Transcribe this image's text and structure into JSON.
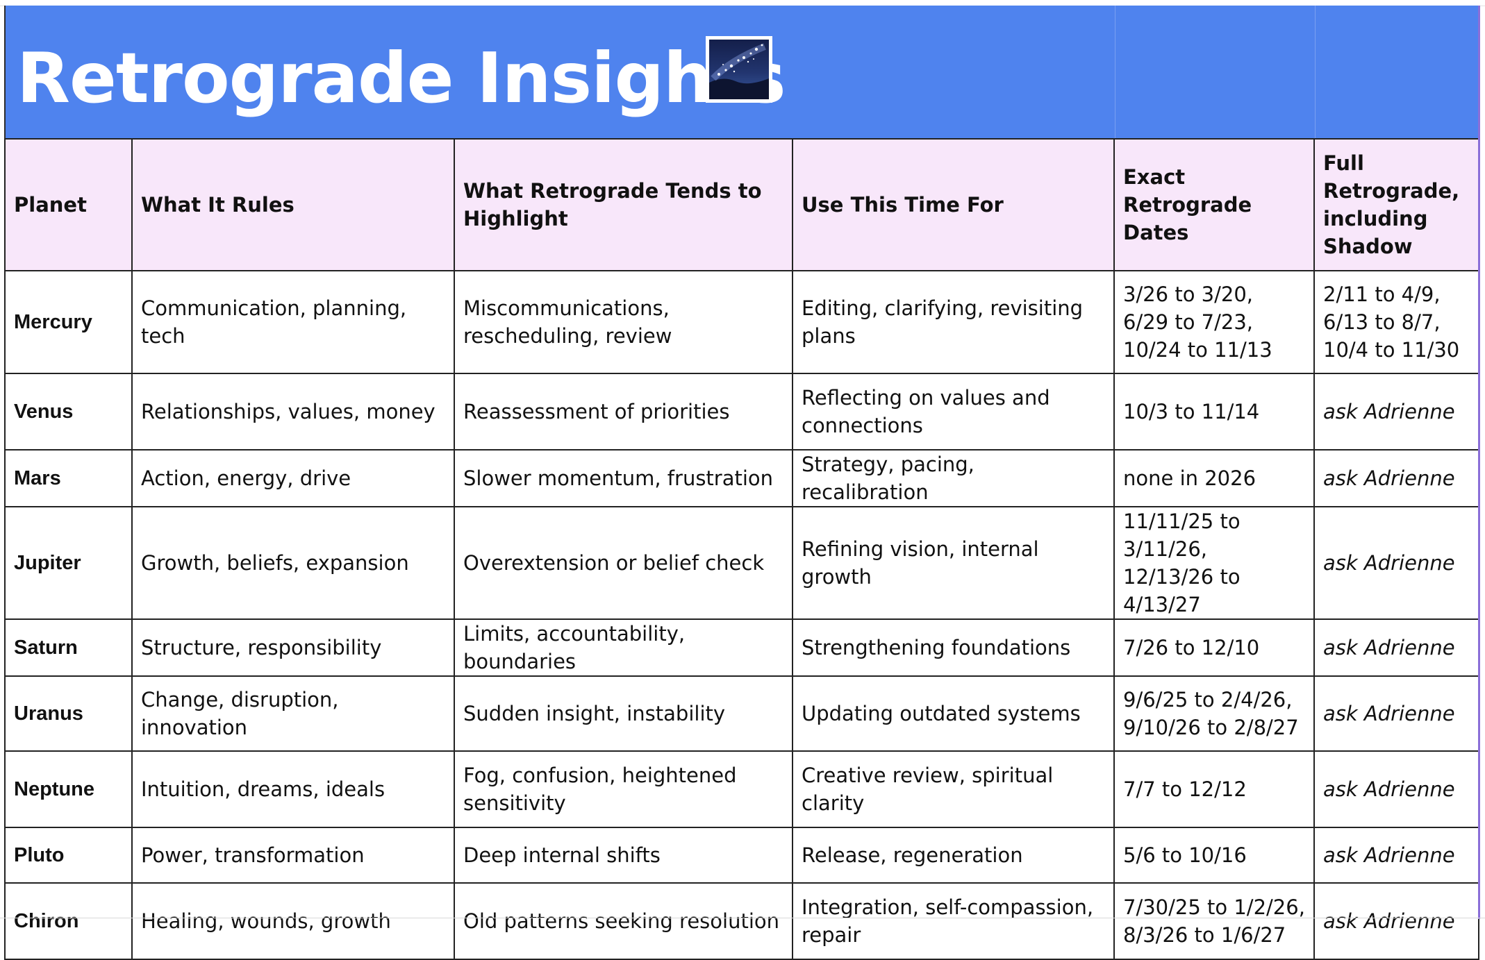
{
  "title": "Retrograde Insights",
  "title_emoji": "milky-way-icon",
  "colors": {
    "title_bg": "#4f83ee",
    "header_bg": "#f8e7fa",
    "border": "#222222",
    "title_text": "#ffffff"
  },
  "columns": [
    "Planet",
    "What It Rules",
    "What Retrograde Tends to Highlight",
    "Use This Time For",
    "Exact Retrograde Dates",
    "Full Retrograde, including Shadow"
  ],
  "rows": [
    {
      "planet": "Mercury",
      "rules": "Communication, planning, tech",
      "highlight": "Miscommunications, rescheduling, review",
      "use": "Editing, clarifying, revisiting plans",
      "dates": [
        "3/26 to 3/20,",
        "6/29 to 7/23,",
        "10/24 to 11/13"
      ],
      "shadow": [
        "2/11 to 4/9,",
        "6/13 to 8/7,",
        "10/4 to 11/30"
      ]
    },
    {
      "planet": "Venus",
      "rules": "Relationships, values, money",
      "highlight": "Reassessment of priorities",
      "use": "Reflecting on values and connections",
      "dates": [
        "10/3 to 11/14"
      ],
      "shadow": [
        "ask Adrienne"
      ]
    },
    {
      "planet": "Mars",
      "rules": "Action, energy, drive",
      "highlight": "Slower momentum, frustration",
      "use": "Strategy, pacing, recalibration",
      "dates": [
        "none in 2026"
      ],
      "shadow": [
        "ask Adrienne"
      ]
    },
    {
      "planet": "Jupiter",
      "rules": "Growth, beliefs, expansion",
      "highlight": "Overextension or belief check",
      "use": "Refining vision, internal growth",
      "dates": [
        "11/11/25 to 3/11/26,",
        "12/13/26 to 4/13/27"
      ],
      "shadow": [
        "ask Adrienne"
      ]
    },
    {
      "planet": "Saturn",
      "rules": "Structure, responsibility",
      "highlight": "Limits, accountability, boundaries",
      "use": "Strengthening foundations",
      "dates": [
        "7/26 to 12/10"
      ],
      "shadow": [
        "ask Adrienne"
      ]
    },
    {
      "planet": "Uranus",
      "rules": "Change, disruption, innovation",
      "highlight": "Sudden insight, instability",
      "use": "Updating outdated systems",
      "dates": [
        "9/6/25 to 2/4/26,",
        "9/10/26 to 2/8/27"
      ],
      "shadow": [
        "ask Adrienne"
      ]
    },
    {
      "planet": "Neptune",
      "rules": "Intuition, dreams, ideals",
      "highlight": "Fog, confusion, heightened sensitivity",
      "use": "Creative review, spiritual clarity",
      "dates": [
        "7/7 to 12/12"
      ],
      "shadow": [
        "ask Adrienne"
      ]
    },
    {
      "planet": "Pluto",
      "rules": "Power, transformation",
      "highlight": "Deep internal shifts",
      "use": "Release, regeneration",
      "dates": [
        "5/6 to 10/16"
      ],
      "shadow": [
        "ask Adrienne"
      ]
    },
    {
      "planet": "Chiron",
      "rules": "Healing, wounds, growth",
      "highlight": "Old patterns seeking resolution",
      "use": "Integration, self-compassion, repair",
      "dates": [
        "7/30/25 to 1/2/26,",
        "8/3/26 to 1/6/27"
      ],
      "shadow": [
        "ask Adrienne"
      ]
    }
  ]
}
